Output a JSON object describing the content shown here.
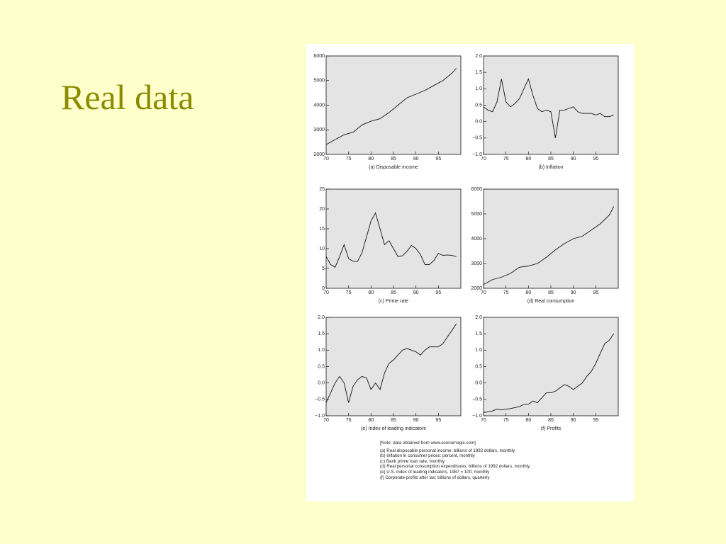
{
  "title": "Real data",
  "chart_data": [
    {
      "type": "line",
      "xlabel": "(a) Disposable income",
      "x": [
        70,
        72,
        74,
        76,
        78,
        80,
        82,
        84,
        86,
        88,
        90,
        92,
        94,
        96,
        98,
        99
      ],
      "values": [
        2400,
        2600,
        2800,
        2900,
        3200,
        3350,
        3450,
        3700,
        4000,
        4300,
        4450,
        4600,
        4800,
        5000,
        5300,
        5500
      ],
      "xlim": [
        70,
        100
      ],
      "xticks": [
        70,
        75,
        80,
        85,
        90,
        95
      ],
      "ylim": [
        2000,
        6000
      ],
      "yticks": [
        2000,
        3000,
        4000,
        5000,
        6000
      ]
    },
    {
      "type": "line",
      "xlabel": "(b) Inflation",
      "x": [
        70,
        71,
        72,
        73,
        74,
        75,
        76,
        77,
        78,
        79,
        80,
        81,
        82,
        83,
        84,
        85,
        86,
        87,
        88,
        89,
        90,
        91,
        92,
        93,
        94,
        95,
        96,
        97,
        98,
        99
      ],
      "values": [
        0.45,
        0.35,
        0.3,
        0.6,
        1.3,
        0.6,
        0.45,
        0.55,
        0.7,
        1.0,
        1.3,
        0.8,
        0.4,
        0.3,
        0.35,
        0.3,
        -0.5,
        0.35,
        0.35,
        0.4,
        0.45,
        0.3,
        0.25,
        0.25,
        0.25,
        0.2,
        0.25,
        0.15,
        0.15,
        0.2
      ],
      "xlim": [
        70,
        100
      ],
      "xticks": [
        70,
        75,
        80,
        85,
        90,
        95
      ],
      "ylim": [
        -1,
        2
      ],
      "yticks": [
        {
          "value": -1,
          "label": "−1.0"
        },
        {
          "value": -0.5,
          "label": "−0.5"
        },
        {
          "value": 0,
          "label": "0.0"
        },
        0.5,
        {
          "value": 1,
          "label": "1.0"
        },
        1.5,
        {
          "value": 2,
          "label": "2.0"
        }
      ]
    },
    {
      "type": "line",
      "xlabel": "(c) Prime rate",
      "x": [
        70,
        71,
        72,
        73,
        74,
        75,
        76,
        77,
        78,
        79,
        80,
        81,
        82,
        83,
        84,
        85,
        86,
        87,
        88,
        89,
        90,
        91,
        92,
        93,
        94,
        95,
        96,
        97,
        98,
        99
      ],
      "values": [
        8,
        6,
        5.3,
        8,
        11,
        7.5,
        6.8,
        6.8,
        9,
        13,
        17,
        19,
        15,
        11,
        12,
        10,
        8,
        8.2,
        9.3,
        10.8,
        10,
        8.5,
        6,
        6,
        7,
        8.8,
        8.3,
        8.4,
        8.3,
        8
      ],
      "xlim": [
        70,
        100
      ],
      "xticks": [
        70,
        75,
        80,
        85,
        90,
        95
      ],
      "ylim": [
        0,
        25
      ],
      "yticks": [
        0,
        5,
        10,
        15,
        20,
        25
      ]
    },
    {
      "type": "line",
      "xlabel": "(d) Real consumption",
      "x": [
        70,
        72,
        74,
        76,
        78,
        80,
        82,
        84,
        86,
        88,
        90,
        92,
        94,
        96,
        98,
        99
      ],
      "values": [
        2150,
        2350,
        2450,
        2600,
        2850,
        2900,
        3000,
        3250,
        3550,
        3800,
        4000,
        4100,
        4350,
        4600,
        4950,
        5300
      ],
      "xlim": [
        70,
        100
      ],
      "xticks": [
        70,
        75,
        80,
        85,
        90,
        95
      ],
      "ylim": [
        2000,
        6000
      ],
      "yticks": [
        2000,
        3000,
        4000,
        5000,
        6000
      ]
    },
    {
      "type": "line",
      "xlabel": "(e) Index of leading indicators",
      "x": [
        70,
        71,
        72,
        73,
        74,
        75,
        76,
        77,
        78,
        79,
        80,
        81,
        82,
        83,
        84,
        85,
        86,
        87,
        88,
        89,
        90,
        91,
        92,
        93,
        94,
        95,
        96,
        97,
        98,
        99
      ],
      "values": [
        -0.6,
        -0.3,
        0.0,
        0.2,
        0.0,
        -0.6,
        -0.1,
        0.1,
        0.2,
        0.15,
        -0.2,
        0.0,
        -0.2,
        0.3,
        0.6,
        0.7,
        0.85,
        1.0,
        1.05,
        1.0,
        0.95,
        0.85,
        1.0,
        1.1,
        1.1,
        1.1,
        1.2,
        1.4,
        1.6,
        1.8
      ],
      "xlim": [
        70,
        100
      ],
      "xticks": [
        70,
        75,
        80,
        85,
        90,
        95
      ],
      "ylim": [
        -1,
        2
      ],
      "yticks": [
        {
          "value": -1,
          "label": "−1.0"
        },
        {
          "value": -0.5,
          "label": "−0.5"
        },
        {
          "value": 0,
          "label": "0.0"
        },
        0.5,
        {
          "value": 1,
          "label": "1.0"
        },
        1.5,
        {
          "value": 2,
          "label": "2.0"
        }
      ]
    },
    {
      "type": "line",
      "xlabel": "(f) Profits",
      "x": [
        70,
        71,
        72,
        73,
        74,
        75,
        76,
        77,
        78,
        79,
        80,
        81,
        82,
        83,
        84,
        85,
        86,
        87,
        88,
        89,
        90,
        91,
        92,
        93,
        94,
        95,
        96,
        97,
        98,
        99
      ],
      "values": [
        -0.9,
        -0.88,
        -0.85,
        -0.8,
        -0.82,
        -0.8,
        -0.78,
        -0.75,
        -0.72,
        -0.65,
        -0.65,
        -0.55,
        -0.6,
        -0.45,
        -0.3,
        -0.3,
        -0.25,
        -0.15,
        -0.05,
        -0.1,
        -0.2,
        -0.1,
        0.0,
        0.2,
        0.35,
        0.6,
        0.9,
        1.2,
        1.3,
        1.5
      ],
      "xlim": [
        70,
        100
      ],
      "xticks": [
        70,
        75,
        80,
        85,
        90,
        95
      ],
      "ylim": [
        -1,
        2
      ],
      "yticks": [
        {
          "value": -1,
          "label": "−1.0"
        },
        {
          "value": -0.5,
          "label": "−0.5"
        },
        {
          "value": 0,
          "label": "0.0"
        },
        0.5,
        {
          "value": 1,
          "label": "1.0"
        },
        1.5,
        {
          "value": 2,
          "label": "2.0"
        }
      ]
    }
  ],
  "notes": [
    "[Note: data obtained from www.economagic.com]",
    "(a) Real disposable personal income; billions of 1992 dollars, monthly",
    "(b) Inflation in consumer prices: percent, monthly",
    "(c) Bank prime loan rate, monthly",
    "(d) Real personal consumption expenditures; billions of 1992 dollars, monthly",
    "(e) U.S. index of leading indicators, 1987 = 100, monthly",
    "(f) Corporate profits after tax; billions of dollars, quarterly"
  ]
}
